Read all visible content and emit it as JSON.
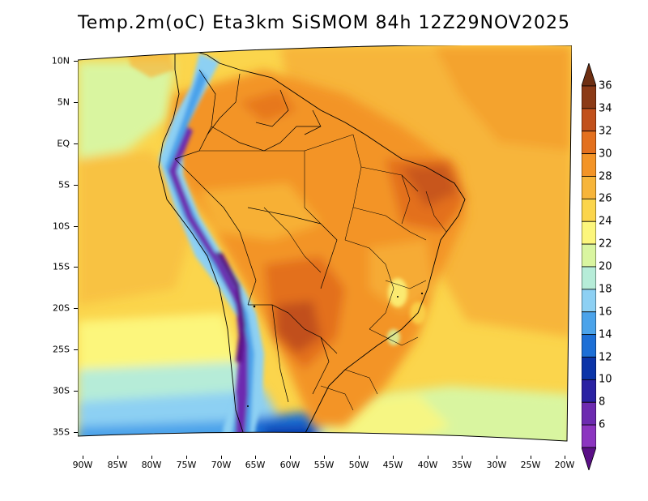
{
  "title": "Temp.2m(oC) Eta3km SiSMOM 84h 12Z29NOV2025",
  "lat_labels": [
    "10N",
    "5N",
    "EQ",
    "5S",
    "10S",
    "15S",
    "20S",
    "25S",
    "30S",
    "35S"
  ],
  "lon_labels": [
    "90W",
    "85W",
    "80W",
    "75W",
    "70W",
    "65W",
    "60W",
    "55W",
    "50W",
    "45W",
    "40W",
    "35W",
    "30W",
    "25W",
    "20W"
  ],
  "colorbar": {
    "labels": [
      "36",
      "34",
      "32",
      "30",
      "28",
      "26",
      "24",
      "22",
      "20",
      "18",
      "16",
      "14",
      "12",
      "10",
      "8",
      "6"
    ],
    "colors": [
      "#6e2f12",
      "#8b3a16",
      "#c1501c",
      "#e3701e",
      "#f39427",
      "#f7b53a",
      "#fbd54c",
      "#fcf67c",
      "#d9f5a0",
      "#b6ecd8",
      "#8dd0f3",
      "#4ba3ea",
      "#1d6fd6",
      "#0b34a8",
      "#2a22a3",
      "#6d2bb0",
      "#8c35c0",
      "#5a0f86"
    ]
  }
}
